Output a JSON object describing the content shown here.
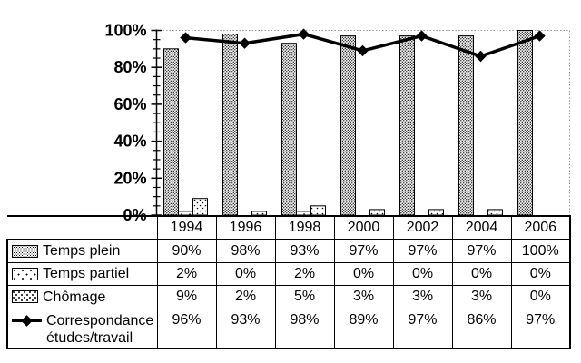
{
  "figure": {
    "background": "#ffffff",
    "axis_color": "#000000",
    "gridline_color": "#999999",
    "bar_border_color": "#000000",
    "line_color": "#000000"
  },
  "chart_data": {
    "type": "bar",
    "subtype": "bar-and-line-combo",
    "categories": [
      "1994",
      "1996",
      "1998",
      "2000",
      "2002",
      "2004",
      "2006"
    ],
    "series": [
      {
        "name": "Temps plein",
        "type": "bar",
        "pattern": "dots-dense",
        "values": [
          90,
          98,
          93,
          97,
          97,
          97,
          100
        ]
      },
      {
        "name": "Temps partiel",
        "type": "bar",
        "pattern": "dots-sparse",
        "values": [
          2,
          0,
          2,
          0,
          0,
          0,
          0
        ]
      },
      {
        "name": "Chômage",
        "type": "bar",
        "pattern": "dots-medium",
        "values": [
          9,
          2,
          5,
          3,
          3,
          3,
          0
        ]
      },
      {
        "name": "Correspondance études/travail",
        "type": "line",
        "marker": "diamond",
        "values": [
          96,
          93,
          98,
          89,
          97,
          86,
          97
        ]
      }
    ],
    "title": "",
    "xlabel": "",
    "ylabel": "",
    "ylim": [
      0,
      100
    ],
    "y_tick_labels": [
      "0%",
      "20%",
      "40%",
      "60%",
      "80%",
      "100%"
    ],
    "y_major_tick_step": 20,
    "y_minor_tick_step": 5,
    "grid": "top-100%-dotted-only",
    "legend_position": "table-left-column"
  },
  "table": {
    "column_headers": [
      "1994",
      "1996",
      "1998",
      "2000",
      "2002",
      "2004",
      "2006"
    ],
    "rows": [
      {
        "legend": "dots-dense",
        "label": "Temps plein",
        "values": [
          "90%",
          "98%",
          "93%",
          "97%",
          "97%",
          "97%",
          "100%"
        ]
      },
      {
        "legend": "dots-sparse",
        "label": "Temps partiel",
        "values": [
          "2%",
          "0%",
          "2%",
          "0%",
          "0%",
          "0%",
          "0%"
        ]
      },
      {
        "legend": "dots-medium",
        "label": "Chômage",
        "values": [
          "9%",
          "2%",
          "5%",
          "3%",
          "3%",
          "3%",
          "0%"
        ]
      },
      {
        "legend": "line-diamond",
        "label": "Correspondance études/travail",
        "values": [
          "96%",
          "93%",
          "98%",
          "89%",
          "97%",
          "86%",
          "97%"
        ]
      }
    ]
  }
}
